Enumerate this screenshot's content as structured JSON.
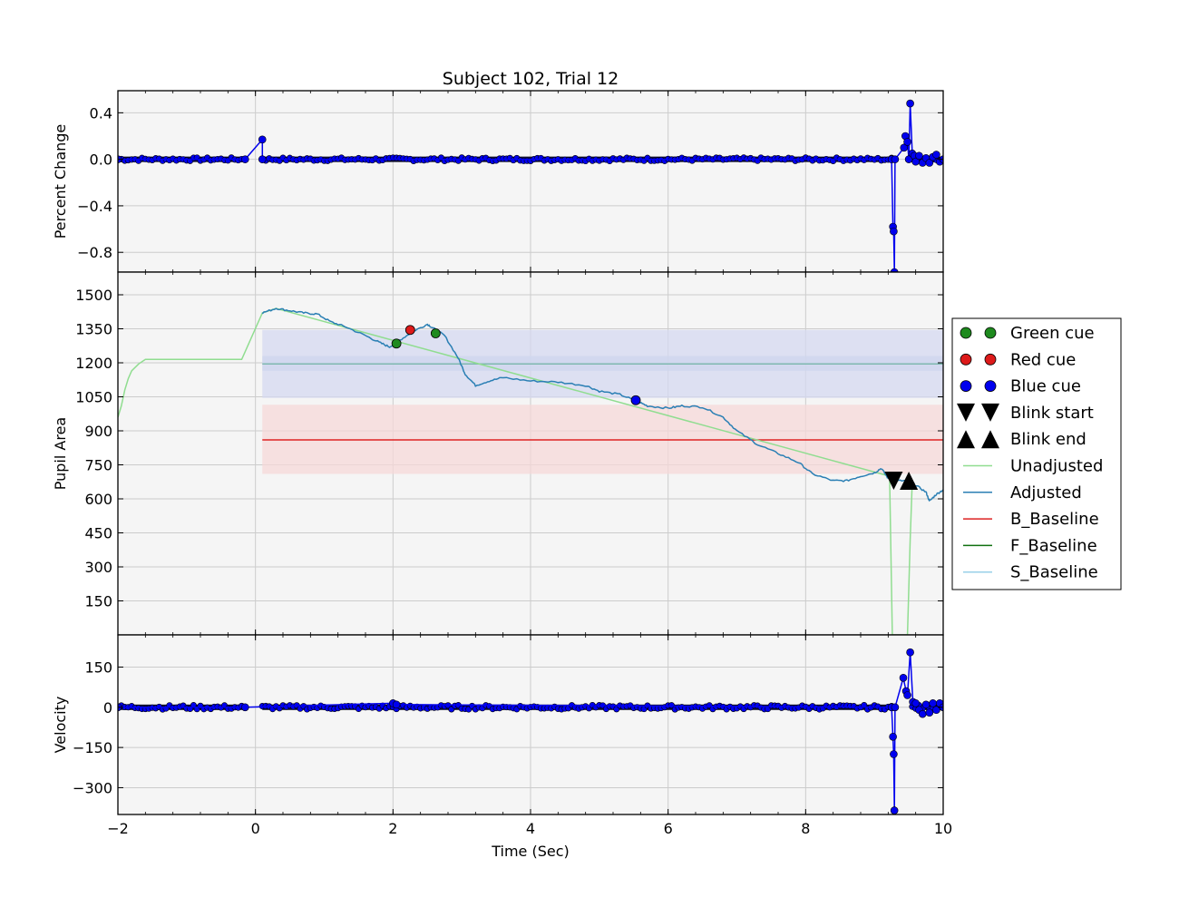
{
  "chart_data": {
    "type": "line",
    "title": "Subject 102, Trial 12",
    "xlabel": "Time (Sec)",
    "xlim": [
      -2,
      10
    ],
    "xticks": [
      "−2",
      "0",
      "2",
      "4",
      "6",
      "8",
      "10"
    ],
    "grid": true,
    "legend_position": "right",
    "colors": {
      "background": "#f5f5f5",
      "grid": "#cccccc",
      "unadjusted": "#90dd90",
      "adjusted": "#2a7fb4",
      "b_baseline": "#dd2222",
      "f_baseline": "#107010",
      "s_baseline": "#99d0e8",
      "blue_marker": "#0000ee",
      "green_marker": "#1e8a1e",
      "red_marker": "#dd1a1a",
      "blink_marker": "#000000",
      "band_blue": "#d4d8f0",
      "band_red": "#f5d8d8"
    },
    "legend": [
      {
        "label": "Green cue",
        "kind": "circle",
        "color": "#1e8a1e"
      },
      {
        "label": "Red cue",
        "kind": "circle",
        "color": "#dd1a1a"
      },
      {
        "label": "Blue cue",
        "kind": "circle",
        "color": "#0000ee"
      },
      {
        "label": "Blink start",
        "kind": "triangle-down",
        "color": "#000000"
      },
      {
        "label": "Blink end",
        "kind": "triangle-up",
        "color": "#000000"
      },
      {
        "label": "Unadjusted",
        "kind": "line",
        "color": "#90dd90"
      },
      {
        "label": "Adjusted",
        "kind": "line",
        "color": "#2a7fb4"
      },
      {
        "label": "B_Baseline",
        "kind": "line",
        "color": "#dd2222"
      },
      {
        "label": "F_Baseline",
        "kind": "line",
        "color": "#107010"
      },
      {
        "label": "S_Baseline",
        "kind": "line",
        "color": "#99d0e8"
      }
    ],
    "panels": [
      {
        "ylabel": "Percent Change",
        "ylim": [
          -0.97,
          0.59
        ],
        "yticks": [
          0.4,
          0.0,
          -0.4,
          -0.8
        ],
        "ytick_labels": [
          "0.4",
          "0.0",
          "−0.4",
          "−0.8"
        ],
        "series": [
          {
            "kind": "stem",
            "points": [
              [
                -2,
                0.0
              ],
              [
                -0.15,
                0.0
              ],
              [
                0.1,
                0.17
              ],
              [
                0.1,
                0.0
              ],
              [
                9.25,
                0.0
              ],
              [
                9.27,
                -0.58
              ],
              [
                9.28,
                -0.62
              ],
              [
                9.29,
                -0.97
              ],
              [
                9.3,
                0.0
              ],
              [
                9.43,
                0.1
              ],
              [
                9.45,
                0.2
              ],
              [
                9.48,
                0.15
              ],
              [
                9.5,
                0.0
              ],
              [
                9.52,
                0.48
              ],
              [
                9.55,
                0.05
              ],
              [
                9.58,
                0.03
              ],
              [
                9.6,
                -0.02
              ],
              [
                9.65,
                0.03
              ],
              [
                9.7,
                -0.03
              ],
              [
                9.75,
                0.01
              ],
              [
                9.8,
                -0.03
              ],
              [
                9.85,
                0.02
              ],
              [
                9.9,
                0.04
              ],
              [
                9.95,
                -0.02
              ],
              [
                10,
                0.0
              ]
            ]
          }
        ],
        "dense_segments": [
          [
            -2,
            -0.18
          ],
          [
            0.1,
            9.25
          ],
          [
            9.55,
            10
          ]
        ]
      },
      {
        "ylabel": "Pupil Area",
        "ylim": [
          0,
          1600
        ],
        "yticks": [
          1500,
          1350,
          1200,
          1050,
          900,
          750,
          600,
          450,
          300,
          150
        ],
        "ytick_labels": [
          "1500",
          "1350",
          "1200",
          "1050",
          "900",
          "750",
          "600",
          "450",
          "300",
          "150"
        ],
        "bands": [
          {
            "x": [
              0.1,
              10
            ],
            "y": [
              1045,
              1345
            ],
            "color": "#d4d8f0"
          },
          {
            "x": [
              0.1,
              10
            ],
            "y": [
              1165,
              1230
            ],
            "color": "#cdd6ee"
          },
          {
            "x": [
              0.1,
              10
            ],
            "y": [
              710,
              1015
            ],
            "color": "#f5d8d8"
          }
        ],
        "hlines": [
          {
            "x": [
              0.1,
              10
            ],
            "y": 1195,
            "color": "#7fb8b0"
          },
          {
            "x": [
              0.1,
              10
            ],
            "y": 860,
            "color": "#dd2222"
          }
        ],
        "unadjusted": [
          [
            -2,
            960
          ],
          [
            -1.95,
            1010
          ],
          [
            -1.9,
            1080
          ],
          [
            -1.85,
            1130
          ],
          [
            -1.8,
            1165
          ],
          [
            -1.7,
            1195
          ],
          [
            -1.6,
            1215
          ],
          [
            -0.2,
            1215
          ],
          [
            0.1,
            1420
          ],
          [
            0.3,
            1440
          ],
          [
            9.22,
            700
          ],
          [
            9.26,
            0
          ],
          [
            9.4,
            0
          ],
          [
            9.48,
            0
          ],
          [
            9.52,
            420
          ],
          [
            9.55,
            680
          ]
        ],
        "adjusted": [
          [
            0.1,
            1420
          ],
          [
            0.3,
            1440
          ],
          [
            0.5,
            1430
          ],
          [
            0.7,
            1420
          ],
          [
            0.9,
            1415
          ],
          [
            1.1,
            1380
          ],
          [
            1.3,
            1360
          ],
          [
            1.6,
            1320
          ],
          [
            1.8,
            1290
          ],
          [
            1.95,
            1270
          ],
          [
            2.1,
            1300
          ],
          [
            2.3,
            1340
          ],
          [
            2.5,
            1370
          ],
          [
            2.6,
            1350
          ],
          [
            2.75,
            1320
          ],
          [
            2.95,
            1220
          ],
          [
            3.05,
            1150
          ],
          [
            3.2,
            1100
          ],
          [
            3.4,
            1120
          ],
          [
            3.6,
            1135
          ],
          [
            4.0,
            1120
          ],
          [
            4.4,
            1115
          ],
          [
            4.8,
            1100
          ],
          [
            5.0,
            1075
          ],
          [
            5.3,
            1060
          ],
          [
            5.55,
            1030
          ],
          [
            5.7,
            1010
          ],
          [
            6.0,
            1000
          ],
          [
            6.2,
            1010
          ],
          [
            6.5,
            1005
          ],
          [
            6.8,
            960
          ],
          [
            7.0,
            900
          ],
          [
            7.3,
            840
          ],
          [
            7.6,
            800
          ],
          [
            7.9,
            760
          ],
          [
            8.1,
            710
          ],
          [
            8.4,
            680
          ],
          [
            8.6,
            680
          ],
          [
            8.8,
            700
          ],
          [
            9.0,
            715
          ],
          [
            9.1,
            735
          ],
          [
            9.2,
            690
          ],
          [
            9.3,
            680
          ],
          [
            9.5,
            680
          ],
          [
            9.6,
            660
          ],
          [
            9.75,
            630
          ],
          [
            9.8,
            590
          ],
          [
            9.9,
            620
          ],
          [
            10,
            640
          ]
        ],
        "cues": [
          {
            "x": 2.05,
            "y": 1285,
            "cue": "green"
          },
          {
            "x": 2.25,
            "y": 1345,
            "cue": "red"
          },
          {
            "x": 2.62,
            "y": 1330,
            "cue": "green"
          },
          {
            "x": 5.53,
            "y": 1035,
            "cue": "blue"
          }
        ],
        "blinks": [
          {
            "x": 9.28,
            "y": 680,
            "kind": "start"
          },
          {
            "x": 9.5,
            "y": 680,
            "kind": "end"
          }
        ]
      },
      {
        "ylabel": "Velocity",
        "ylim": [
          -400,
          270
        ],
        "yticks": [
          150,
          0,
          -150,
          -300
        ],
        "ytick_labels": [
          "150",
          "0",
          "−150",
          "−300"
        ],
        "series": [
          {
            "kind": "stem",
            "points": [
              [
                -2,
                0
              ],
              [
                -0.15,
                0
              ],
              [
                2.0,
                15
              ],
              [
                2.05,
                10
              ],
              [
                9.25,
                0
              ],
              [
                9.27,
                -110
              ],
              [
                9.28,
                -175
              ],
              [
                9.29,
                -385
              ],
              [
                9.3,
                0
              ],
              [
                9.42,
                110
              ],
              [
                9.46,
                60
              ],
              [
                9.48,
                45
              ],
              [
                9.52,
                205
              ],
              [
                9.56,
                20
              ],
              [
                9.6,
                15
              ],
              [
                9.65,
                -10
              ],
              [
                9.7,
                -25
              ],
              [
                9.75,
                10
              ],
              [
                9.8,
                -20
              ],
              [
                9.85,
                15
              ],
              [
                9.9,
                -10
              ],
              [
                9.95,
                15
              ],
              [
                10,
                0
              ]
            ]
          }
        ],
        "dense_segments": [
          [
            -2,
            -0.18
          ],
          [
            0.1,
            9.25
          ],
          [
            9.55,
            10
          ]
        ]
      }
    ]
  }
}
